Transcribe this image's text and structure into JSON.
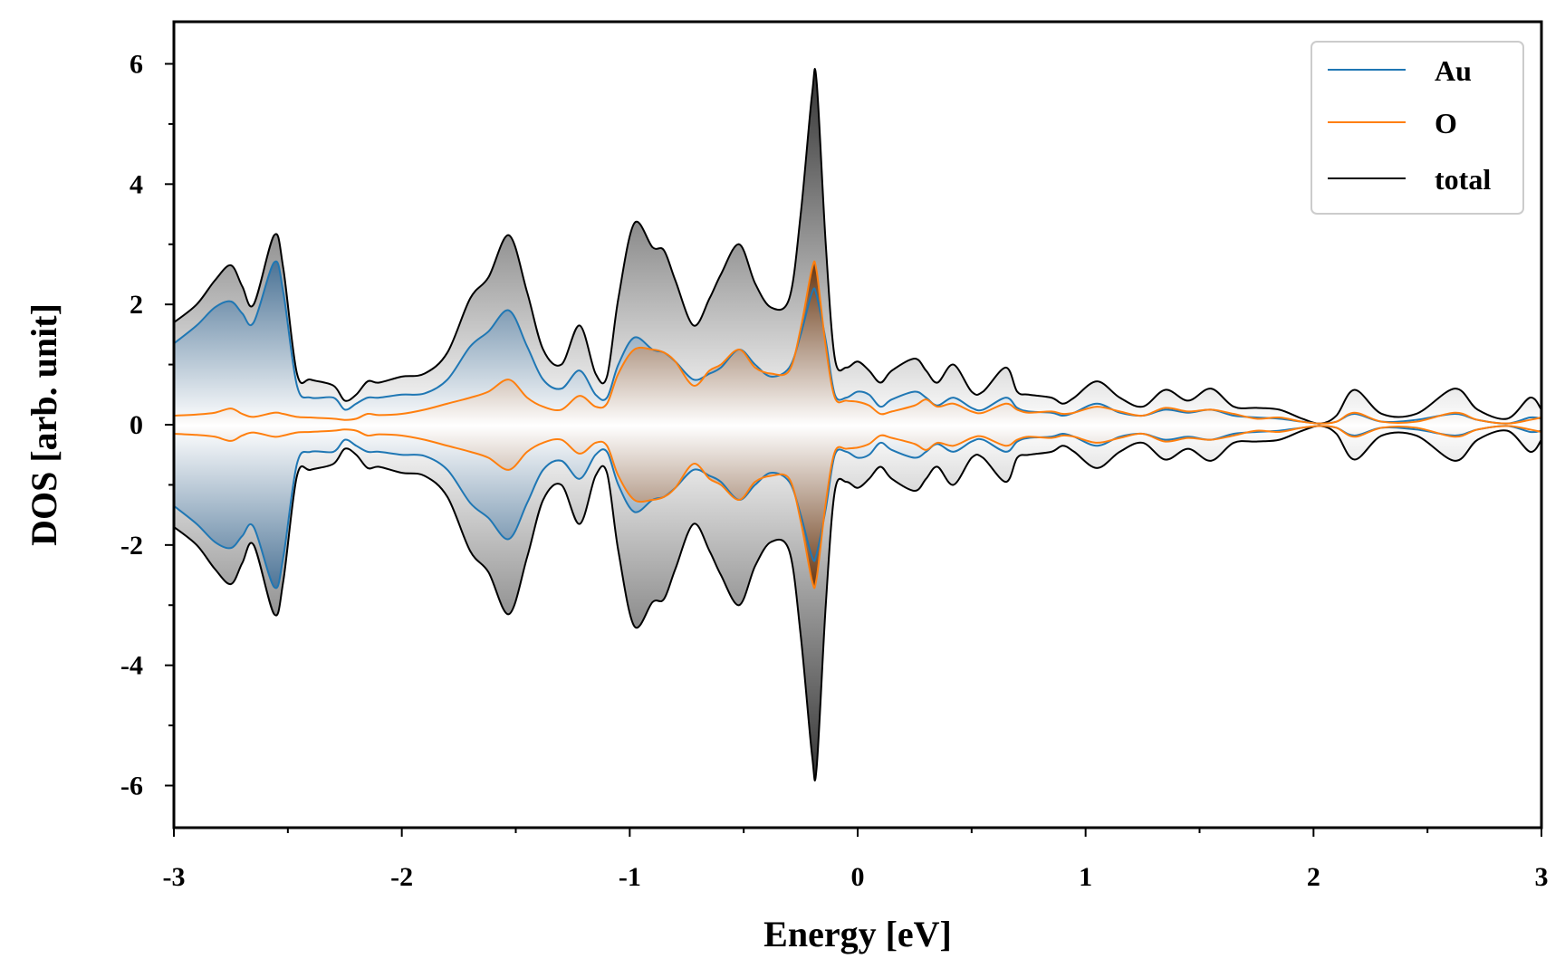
{
  "chart_data": {
    "type": "area",
    "title": "",
    "xlabel": "Energy [eV]",
    "ylabel": "DOS [arb. unit]",
    "xlim": [
      -3,
      3
    ],
    "ylim": [
      -6.7,
      6.7
    ],
    "xticks": [
      -3,
      -2,
      -1,
      0,
      1,
      2,
      3
    ],
    "yticks": [
      -6,
      -4,
      -2,
      0,
      2,
      4,
      6
    ],
    "xtick_labels": [
      "-3",
      "-2",
      "-1",
      "0",
      "1",
      "2",
      "3"
    ],
    "ytick_labels": [
      "-6",
      "-4",
      "-2",
      "0",
      "2",
      "4",
      "6"
    ],
    "grid": false,
    "legend_position": "top-right",
    "mirrored_spin_channels": true,
    "legend": [
      {
        "label": "Au",
        "color": "#1f77b4"
      },
      {
        "label": "O",
        "color": "#ff7f0e"
      },
      {
        "label": "total",
        "color": "#000000"
      }
    ],
    "series": [
      {
        "name": "Au",
        "color": "#1f77b4",
        "fill": "#2e5c85",
        "x": [
          -3.0,
          -2.9,
          -2.82,
          -2.75,
          -2.7,
          -2.65,
          -2.56,
          -2.52,
          -2.46,
          -2.4,
          -2.3,
          -2.25,
          -2.2,
          -2.15,
          -2.1,
          -2.0,
          -1.9,
          -1.8,
          -1.7,
          -1.62,
          -1.53,
          -1.45,
          -1.38,
          -1.3,
          -1.22,
          -1.15,
          -1.1,
          -1.05,
          -0.98,
          -0.9,
          -0.85,
          -0.8,
          -0.72,
          -0.65,
          -0.6,
          -0.52,
          -0.45,
          -0.38,
          -0.3,
          -0.25,
          -0.2,
          -0.18,
          -0.14,
          -0.1,
          -0.05,
          0.0,
          0.05,
          0.1,
          0.15,
          0.25,
          0.3,
          0.35,
          0.42,
          0.5,
          0.55,
          0.65,
          0.7,
          0.75,
          0.85,
          0.9,
          0.95,
          1.05,
          1.15,
          1.25,
          1.35,
          1.45,
          1.55,
          1.65,
          1.75,
          1.85,
          1.95,
          2.03,
          2.1,
          2.18,
          2.3,
          2.45,
          2.62,
          2.72,
          2.85,
          2.95,
          3.0
        ],
        "values": [
          1.35,
          1.65,
          1.95,
          2.05,
          1.85,
          1.7,
          2.7,
          2.2,
          0.65,
          0.45,
          0.45,
          0.25,
          0.35,
          0.45,
          0.45,
          0.5,
          0.52,
          0.75,
          1.3,
          1.55,
          1.9,
          1.3,
          0.75,
          0.6,
          0.9,
          0.5,
          0.45,
          1.0,
          1.45,
          1.25,
          1.2,
          1.05,
          0.75,
          0.85,
          0.95,
          1.25,
          1.0,
          0.8,
          0.95,
          1.5,
          2.2,
          2.15,
          1.4,
          0.5,
          0.45,
          0.55,
          0.5,
          0.3,
          0.42,
          0.55,
          0.45,
          0.32,
          0.45,
          0.28,
          0.25,
          0.45,
          0.28,
          0.22,
          0.2,
          0.15,
          0.2,
          0.35,
          0.2,
          0.15,
          0.25,
          0.2,
          0.25,
          0.15,
          0.12,
          0.1,
          0.05,
          0.02,
          0.05,
          0.18,
          0.05,
          0.08,
          0.18,
          0.08,
          0.02,
          0.12,
          0.1
        ]
      },
      {
        "name": "O",
        "color": "#ff7f0e",
        "fill": "#7a4a28",
        "x": [
          -3.0,
          -2.9,
          -2.82,
          -2.75,
          -2.7,
          -2.65,
          -2.56,
          -2.52,
          -2.46,
          -2.4,
          -2.3,
          -2.25,
          -2.2,
          -2.15,
          -2.1,
          -2.0,
          -1.9,
          -1.8,
          -1.7,
          -1.62,
          -1.53,
          -1.45,
          -1.38,
          -1.3,
          -1.22,
          -1.15,
          -1.1,
          -1.05,
          -0.98,
          -0.9,
          -0.85,
          -0.8,
          -0.72,
          -0.65,
          -0.6,
          -0.52,
          -0.45,
          -0.38,
          -0.3,
          -0.25,
          -0.2,
          -0.18,
          -0.14,
          -0.1,
          -0.05,
          0.0,
          0.05,
          0.1,
          0.15,
          0.25,
          0.3,
          0.35,
          0.42,
          0.5,
          0.55,
          0.65,
          0.7,
          0.75,
          0.85,
          0.9,
          0.95,
          1.05,
          1.15,
          1.25,
          1.35,
          1.45,
          1.55,
          1.65,
          1.75,
          1.85,
          1.95,
          2.03,
          2.1,
          2.18,
          2.3,
          2.45,
          2.62,
          2.72,
          2.85,
          2.95,
          3.0
        ],
        "values": [
          0.15,
          0.17,
          0.2,
          0.27,
          0.18,
          0.13,
          0.2,
          0.18,
          0.13,
          0.12,
          0.1,
          0.08,
          0.1,
          0.18,
          0.16,
          0.18,
          0.25,
          0.35,
          0.45,
          0.55,
          0.75,
          0.45,
          0.3,
          0.25,
          0.48,
          0.3,
          0.35,
          0.85,
          1.25,
          1.25,
          1.2,
          1.05,
          0.65,
          0.9,
          1.0,
          1.25,
          0.95,
          0.85,
          0.9,
          1.6,
          2.6,
          2.55,
          1.3,
          0.45,
          0.4,
          0.38,
          0.32,
          0.18,
          0.22,
          0.32,
          0.42,
          0.3,
          0.35,
          0.22,
          0.2,
          0.35,
          0.25,
          0.2,
          0.22,
          0.18,
          0.2,
          0.3,
          0.22,
          0.15,
          0.28,
          0.22,
          0.25,
          0.18,
          0.1,
          0.12,
          0.05,
          0.02,
          0.05,
          0.2,
          0.05,
          0.05,
          0.2,
          0.08,
          0.02,
          0.08,
          0.12
        ]
      },
      {
        "name": "total",
        "color": "#000000",
        "fill": "#4a4a4a",
        "x": [
          -3.0,
          -2.9,
          -2.82,
          -2.75,
          -2.7,
          -2.65,
          -2.56,
          -2.52,
          -2.46,
          -2.4,
          -2.3,
          -2.25,
          -2.2,
          -2.15,
          -2.1,
          -2.0,
          -1.9,
          -1.8,
          -1.7,
          -1.62,
          -1.53,
          -1.45,
          -1.38,
          -1.3,
          -1.22,
          -1.15,
          -1.1,
          -1.05,
          -0.98,
          -0.9,
          -0.85,
          -0.8,
          -0.72,
          -0.65,
          -0.6,
          -0.52,
          -0.45,
          -0.38,
          -0.3,
          -0.25,
          -0.2,
          -0.18,
          -0.14,
          -0.1,
          -0.05,
          0.0,
          0.05,
          0.1,
          0.15,
          0.25,
          0.3,
          0.35,
          0.42,
          0.5,
          0.55,
          0.65,
          0.7,
          0.75,
          0.85,
          0.9,
          0.95,
          1.05,
          1.15,
          1.25,
          1.35,
          1.45,
          1.55,
          1.65,
          1.75,
          1.85,
          1.95,
          2.03,
          2.1,
          2.18,
          2.3,
          2.45,
          2.62,
          2.72,
          2.85,
          2.95,
          3.0
        ],
        "values": [
          1.7,
          2.0,
          2.4,
          2.65,
          2.3,
          2.0,
          3.15,
          2.6,
          0.85,
          0.75,
          0.65,
          0.4,
          0.5,
          0.72,
          0.7,
          0.8,
          0.85,
          1.2,
          2.1,
          2.45,
          3.15,
          2.2,
          1.25,
          1.0,
          1.65,
          0.85,
          0.8,
          2.1,
          3.35,
          2.95,
          2.9,
          2.4,
          1.65,
          2.1,
          2.5,
          3.0,
          2.35,
          1.95,
          2.1,
          3.5,
          5.5,
          5.7,
          3.0,
          1.1,
          0.95,
          1.05,
          0.9,
          0.7,
          0.9,
          1.1,
          0.9,
          0.7,
          1.0,
          0.55,
          0.55,
          0.95,
          0.55,
          0.5,
          0.45,
          0.35,
          0.45,
          0.72,
          0.45,
          0.3,
          0.58,
          0.4,
          0.6,
          0.3,
          0.28,
          0.25,
          0.1,
          0.02,
          0.15,
          0.58,
          0.18,
          0.18,
          0.6,
          0.25,
          0.1,
          0.45,
          0.25
        ]
      }
    ]
  }
}
